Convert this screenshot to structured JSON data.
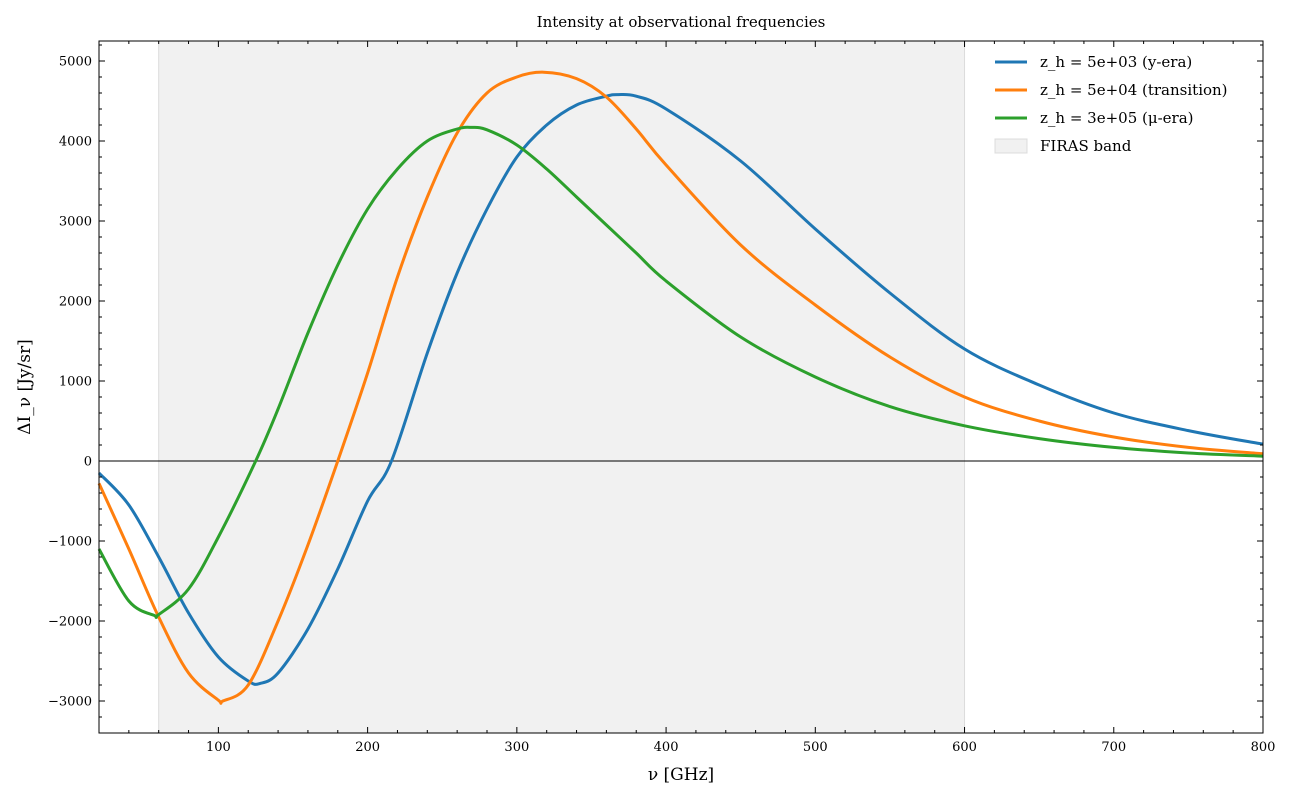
{
  "chart_data": {
    "type": "line",
    "title": "Intensity at observational frequencies",
    "xlabel": "ν [GHz]",
    "ylabel": "ΔI_ν [Jy/sr]",
    "xlim": [
      20,
      800
    ],
    "ylim": [
      -3400,
      5250
    ],
    "x_ticks": [
      100,
      200,
      300,
      400,
      500,
      600,
      700,
      800
    ],
    "x_tick_labels": [
      "100",
      "200",
      "300",
      "400",
      "500",
      "600",
      "700",
      "800"
    ],
    "y_ticks": [
      -3000,
      -2000,
      -1000,
      0,
      1000,
      2000,
      3000,
      4000,
      5000
    ],
    "y_tick_labels": [
      "−3000",
      "−2000",
      "−1000",
      "0",
      "1000",
      "2000",
      "3000",
      "4000",
      "5000"
    ],
    "grid": false,
    "legend_position": "top-right",
    "zero_line": true,
    "shaded_band": {
      "name": "FIRAS band",
      "x_range": [
        60,
        600
      ],
      "color": "#e6e6e6"
    },
    "series": [
      {
        "name": "z_h = 5e+03 (y-era)",
        "color": "#1f77b4",
        "x": [
          20,
          40,
          60,
          80,
          100,
          120,
          128,
          140,
          160,
          180,
          200,
          216,
          240,
          260,
          280,
          300,
          320,
          340,
          360,
          368,
          380,
          400,
          450,
          500,
          550,
          600,
          650,
          700,
          750,
          800
        ],
        "y": [
          -150,
          -550,
          -1200,
          -1900,
          -2450,
          -2750,
          -2780,
          -2650,
          -2100,
          -1350,
          -500,
          0,
          1350,
          2350,
          3150,
          3800,
          4200,
          4450,
          4560,
          4580,
          4560,
          4400,
          3750,
          2900,
          2100,
          1400,
          950,
          600,
          380,
          210
        ]
      },
      {
        "name": "z_h = 5e+04 (transition)",
        "color": "#ff7f0e",
        "x": [
          20,
          40,
          60,
          80,
          100,
          103,
          120,
          140,
          160,
          180,
          200,
          220,
          240,
          260,
          280,
          300,
          318,
          340,
          360,
          380,
          400,
          450,
          500,
          550,
          600,
          650,
          700,
          750,
          800
        ],
        "y": [
          -280,
          -1100,
          -1950,
          -2650,
          -2990,
          -3000,
          -2800,
          -2000,
          -1050,
          0,
          1100,
          2300,
          3300,
          4100,
          4600,
          4800,
          4860,
          4780,
          4550,
          4150,
          3700,
          2700,
          1950,
          1300,
          800,
          500,
          300,
          170,
          90
        ]
      },
      {
        "name": "z_h = 3e+05 (μ-era)",
        "color": "#2ca02c",
        "x": [
          20,
          40,
          57,
          60,
          80,
          100,
          125,
          140,
          160,
          180,
          200,
          220,
          240,
          260,
          270,
          280,
          300,
          320,
          340,
          360,
          380,
          400,
          450,
          500,
          550,
          600,
          650,
          700,
          750,
          800
        ],
        "y": [
          -1100,
          -1750,
          -1930,
          -1920,
          -1600,
          -950,
          0,
          650,
          1600,
          2450,
          3150,
          3650,
          4000,
          4150,
          4170,
          4140,
          3950,
          3650,
          3300,
          2950,
          2600,
          2250,
          1550,
          1050,
          680,
          440,
          280,
          170,
          100,
          60
        ]
      }
    ]
  }
}
